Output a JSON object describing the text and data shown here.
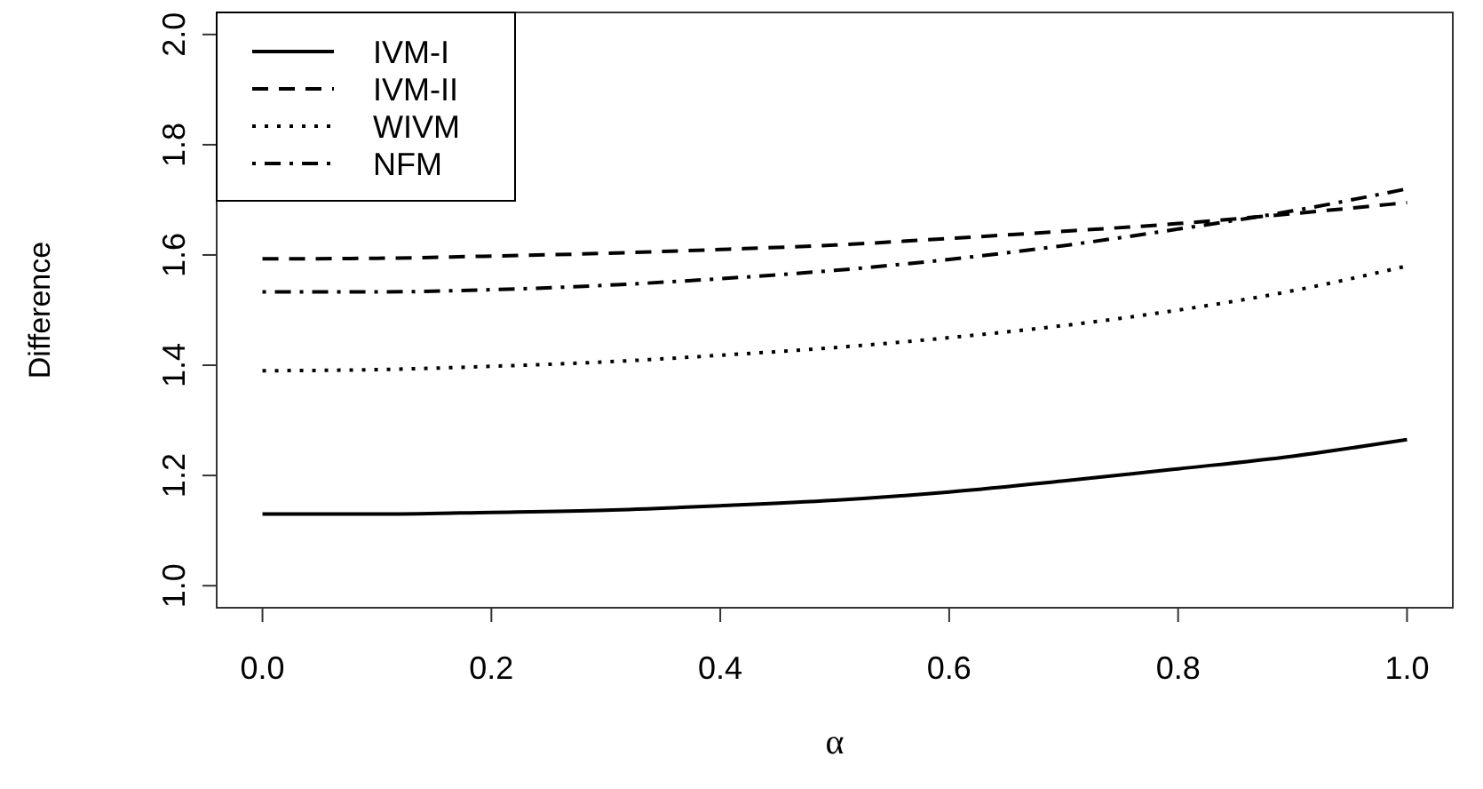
{
  "chart_data": {
    "type": "line",
    "xlabel": "α",
    "ylabel": "Difference",
    "x": [
      0,
      0.1,
      0.2,
      0.3,
      0.4,
      0.5,
      0.6,
      0.7,
      0.8,
      0.9,
      1
    ],
    "series": [
      {
        "name": "IVM-I",
        "color": "#000000",
        "line_style": "solid",
        "values": [
          1.13,
          1.13,
          1.133,
          1.137,
          1.145,
          1.155,
          1.17,
          1.19,
          1.212,
          1.235,
          1.265
        ]
      },
      {
        "name": "IVM-II",
        "color": "#000000",
        "line_style": "dashed",
        "values": [
          1.593,
          1.594,
          1.598,
          1.603,
          1.61,
          1.618,
          1.63,
          1.643,
          1.657,
          1.675,
          1.695
        ]
      },
      {
        "name": "WIVM",
        "color": "#000000",
        "line_style": "dotted",
        "values": [
          1.39,
          1.392,
          1.398,
          1.406,
          1.418,
          1.432,
          1.45,
          1.472,
          1.5,
          1.535,
          1.58
        ]
      },
      {
        "name": "NFM",
        "color": "#000000",
        "line_style": "dashdot",
        "values": [
          1.533,
          1.533,
          1.537,
          1.545,
          1.557,
          1.572,
          1.592,
          1.617,
          1.647,
          1.68,
          1.72
        ]
      }
    ],
    "xlim": [
      -0.04,
      1.04
    ],
    "xticks": [
      {
        "value": 0,
        "label": "0.0"
      },
      {
        "value": 0.2,
        "label": "0.2"
      },
      {
        "value": 0.4,
        "label": "0.4"
      },
      {
        "value": 0.6,
        "label": "0.6"
      },
      {
        "value": 0.8,
        "label": "0.8"
      },
      {
        "value": 1,
        "label": "1.0"
      }
    ],
    "ylim": [
      0.96,
      2.04
    ],
    "yticks": [
      {
        "value": 1,
        "label": "1.0"
      },
      {
        "value": 1.2,
        "label": "1.2"
      },
      {
        "value": 1.4,
        "label": "1.4"
      },
      {
        "value": 1.6,
        "label": "1.6"
      },
      {
        "value": 1.8,
        "label": "1.8"
      },
      {
        "value": 2,
        "label": "2.0"
      }
    ],
    "grid": false,
    "legend": "top left"
  }
}
